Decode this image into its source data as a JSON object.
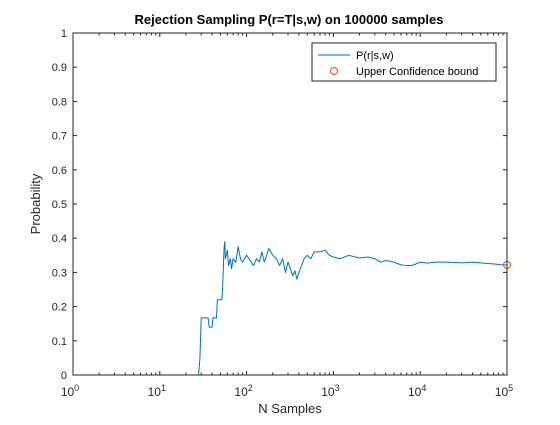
{
  "chart_data": {
    "type": "line",
    "title": "Rejection Sampling P(r=T|s,w) on 100000 samples",
    "xlabel": "N Samples",
    "ylabel": "Probability",
    "xscale": "log",
    "xlim": [
      1,
      100000
    ],
    "ylim": [
      0,
      1
    ],
    "x_ticks": [
      1,
      10,
      100,
      1000,
      10000,
      100000
    ],
    "x_tick_labels": [
      {
        "base": "10",
        "exp": "0"
      },
      {
        "base": "10",
        "exp": "1"
      },
      {
        "base": "10",
        "exp": "2"
      },
      {
        "base": "10",
        "exp": "3"
      },
      {
        "base": "10",
        "exp": "4"
      },
      {
        "base": "10",
        "exp": "5"
      }
    ],
    "y_ticks": [
      0,
      0.1,
      0.2,
      0.3,
      0.4,
      0.5,
      0.6,
      0.7,
      0.8,
      0.9,
      1
    ],
    "y_tick_labels": [
      "0",
      "0.1",
      "0.2",
      "0.3",
      "0.4",
      "0.5",
      "0.6",
      "0.7",
      "0.8",
      "0.9",
      "1"
    ],
    "grid": false,
    "legend_position": "top-right",
    "series": [
      {
        "name": "P(r|s,w)",
        "color": "#0072BD",
        "marker": "none",
        "x": [
          2,
          28,
          29,
          30,
          36,
          37,
          40,
          41,
          45,
          46,
          52,
          53,
          55,
          56,
          57,
          60,
          62,
          65,
          67,
          70,
          75,
          80,
          85,
          90,
          100,
          110,
          120,
          130,
          140,
          150,
          160,
          170,
          180,
          200,
          220,
          240,
          260,
          280,
          300,
          320,
          340,
          360,
          380,
          400,
          430,
          460,
          500,
          550,
          600,
          700,
          800,
          900,
          1000,
          1200,
          1500,
          2000,
          2500,
          3000,
          3500,
          4000,
          5000,
          6000,
          7000,
          8000,
          9000,
          10000,
          12000,
          15000,
          20000,
          30000,
          40000,
          50000,
          60000,
          70000,
          80000,
          90000,
          100000
        ],
        "y": [
          0,
          0,
          0.05,
          0.167,
          0.167,
          0.14,
          0.14,
          0.167,
          0.167,
          0.22,
          0.22,
          0.26,
          0.37,
          0.39,
          0.34,
          0.365,
          0.32,
          0.34,
          0.31,
          0.34,
          0.33,
          0.375,
          0.34,
          0.33,
          0.35,
          0.335,
          0.32,
          0.34,
          0.33,
          0.36,
          0.33,
          0.35,
          0.37,
          0.35,
          0.34,
          0.32,
          0.34,
          0.3,
          0.33,
          0.31,
          0.29,
          0.305,
          0.28,
          0.3,
          0.32,
          0.34,
          0.35,
          0.34,
          0.36,
          0.36,
          0.365,
          0.35,
          0.345,
          0.34,
          0.35,
          0.342,
          0.345,
          0.34,
          0.33,
          0.335,
          0.33,
          0.322,
          0.32,
          0.32,
          0.325,
          0.33,
          0.327,
          0.33,
          0.33,
          0.328,
          0.33,
          0.328,
          0.326,
          0.325,
          0.323,
          0.322,
          0.322
        ]
      },
      {
        "name": "Upper Confidence bound",
        "color": "#D95319",
        "marker": "circle",
        "x": [
          100000
        ],
        "y": [
          0.322
        ]
      }
    ]
  }
}
